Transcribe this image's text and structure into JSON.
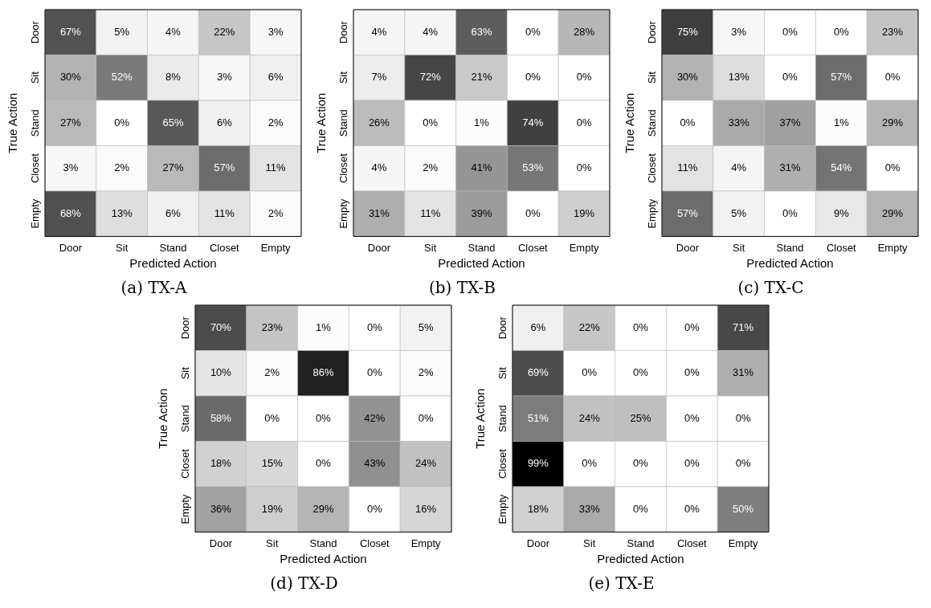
{
  "chart_data": [
    {
      "type": "heatmap",
      "title": "(a) TX-A",
      "xlabel": "Predicted Action",
      "ylabel": "True Action",
      "categories": [
        "Door",
        "Sit",
        "Stand",
        "Closet",
        "Empty"
      ],
      "y_categories": [
        "Door",
        "Sit",
        "Stand",
        "Closet",
        "Empty"
      ],
      "cells": [
        [
          67,
          5,
          4,
          22,
          3
        ],
        [
          30,
          52,
          8,
          3,
          6
        ],
        [
          27,
          0,
          65,
          6,
          2
        ],
        [
          3,
          2,
          27,
          57,
          11
        ],
        [
          68,
          13,
          6,
          11,
          2
        ]
      ],
      "cell_labels": [
        [
          "67%",
          "5%",
          "4%",
          "22%",
          "3%"
        ],
        [
          "30%",
          "52%",
          "8%",
          "3%",
          "6%"
        ],
        [
          "27%",
          "0%",
          "65%",
          "6%",
          "2%"
        ],
        [
          "3%",
          "2%",
          "27%",
          "57%",
          "11%"
        ],
        [
          "68%",
          "13%",
          "6%",
          "11%",
          "2%"
        ]
      ]
    },
    {
      "type": "heatmap",
      "title": "(b) TX-B",
      "xlabel": "Predicted Action",
      "ylabel": "True Action",
      "categories": [
        "Door",
        "Sit",
        "Stand",
        "Closet",
        "Empty"
      ],
      "y_categories": [
        "Door",
        "Sit",
        "Stand",
        "Closet",
        "Empty"
      ],
      "cells": [
        [
          4,
          4,
          63,
          0,
          28
        ],
        [
          7,
          72,
          21,
          0,
          0
        ],
        [
          26,
          0,
          1,
          74,
          0
        ],
        [
          4,
          2,
          41,
          53,
          0
        ],
        [
          31,
          11,
          39,
          0,
          19
        ]
      ],
      "cell_labels": [
        [
          "4%",
          "4%",
          "63%",
          "0%",
          "28%"
        ],
        [
          "7%",
          "72%",
          "21%",
          "0%",
          "0%"
        ],
        [
          "26%",
          "0%",
          "1%",
          "74%",
          "0%"
        ],
        [
          "4%",
          "2%",
          "41%",
          "53%",
          "0%"
        ],
        [
          "31%",
          "11%",
          "39%",
          "0%",
          "19%"
        ]
      ]
    },
    {
      "type": "heatmap",
      "title": "(c) TX-C",
      "xlabel": "Predicted Action",
      "ylabel": "True Action",
      "categories": [
        "Door",
        "Sit",
        "Stand",
        "Closet",
        "Empty"
      ],
      "y_categories": [
        "Door",
        "Sit",
        "Stand",
        "Closet",
        "Empty"
      ],
      "cells": [
        [
          75,
          3,
          0,
          0,
          23
        ],
        [
          30,
          13,
          0,
          57,
          0
        ],
        [
          0,
          33,
          37,
          1,
          29
        ],
        [
          11,
          4,
          31,
          54,
          0
        ],
        [
          57,
          5,
          0,
          9,
          29
        ]
      ],
      "cell_labels": [
        [
          "75%",
          "3%",
          "0%",
          "0%",
          "23%"
        ],
        [
          "30%",
          "13%",
          "0%",
          "57%",
          "0%"
        ],
        [
          "0%",
          "33%",
          "37%",
          "1%",
          "29%"
        ],
        [
          "11%",
          "4%",
          "31%",
          "54%",
          "0%"
        ],
        [
          "57%",
          "5%",
          "0%",
          "9%",
          "29%"
        ]
      ]
    },
    {
      "type": "heatmap",
      "title": "(d) TX-D",
      "xlabel": "Predicted Action",
      "ylabel": "True Action",
      "categories": [
        "Door",
        "Sit",
        "Stand",
        "Closet",
        "Empty"
      ],
      "y_categories": [
        "Door",
        "Sit",
        "Stand",
        "Closet",
        "Empty"
      ],
      "cells": [
        [
          70,
          23,
          1,
          0,
          5
        ],
        [
          10,
          2,
          86,
          0,
          2
        ],
        [
          58,
          0,
          0,
          42,
          0
        ],
        [
          18,
          15,
          0,
          43,
          24
        ],
        [
          36,
          19,
          29,
          0,
          16
        ]
      ],
      "cell_labels": [
        [
          "70%",
          "23%",
          "1%",
          "0%",
          "5%"
        ],
        [
          "10%",
          "2%",
          "86%",
          "0%",
          "2%"
        ],
        [
          "58%",
          "0%",
          "0%",
          "42%",
          "0%"
        ],
        [
          "18%",
          "15%",
          "0%",
          "43%",
          "24%"
        ],
        [
          "36%",
          "19%",
          "29%",
          "0%",
          "16%"
        ]
      ]
    },
    {
      "type": "heatmap",
      "title": "(e) TX-E",
      "xlabel": "Predicted Action",
      "ylabel": "True Action",
      "categories": [
        "Door",
        "Sit",
        "Stand",
        "Closet",
        "Empty"
      ],
      "y_categories": [
        "Door",
        "Sit",
        "Stand",
        "Closet",
        "Empty"
      ],
      "cells": [
        [
          6,
          22,
          0,
          0,
          71
        ],
        [
          69,
          0,
          0,
          0,
          31
        ],
        [
          51,
          24,
          25,
          0,
          0
        ],
        [
          99,
          0,
          0,
          0,
          0
        ],
        [
          18,
          33,
          0,
          0,
          50
        ]
      ],
      "cell_labels": [
        [
          "6%",
          "22%",
          "0%",
          "0%",
          "71%"
        ],
        [
          "69%",
          "0%",
          "0%",
          "0%",
          "31%"
        ],
        [
          "51%",
          "24%",
          "25%",
          "0%",
          "0%"
        ],
        [
          "99%",
          "0%",
          "0%",
          "0%",
          "0%"
        ],
        [
          "18%",
          "33%",
          "0%",
          "0%",
          "50%"
        ]
      ]
    }
  ]
}
